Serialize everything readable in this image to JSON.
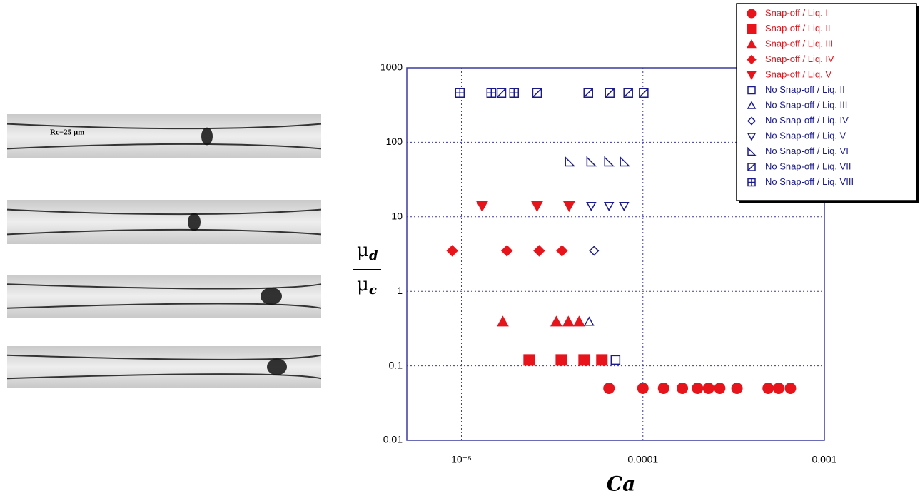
{
  "images": {
    "scale_label": "Rc=25 μm"
  },
  "chart_data": {
    "type": "scatter",
    "x_label": "Ca",
    "y_label": {
      "num_base": "μ",
      "num_sub": "d",
      "den_base": "μ",
      "den_sub": "c"
    },
    "xscale": "log",
    "yscale": "log",
    "xlim": [
      5e-06,
      0.001
    ],
    "ylim": [
      0.01,
      1000
    ],
    "xticks": [
      {
        "value": 1e-05,
        "label": "10⁻⁵"
      },
      0.0001,
      0.001
    ],
    "yticks": [
      0.01,
      0.1,
      1,
      10,
      100,
      1000
    ],
    "grid": true,
    "legend": "upper right",
    "series": [
      {
        "name": "Snap-off / Liq. I",
        "color": "#e8141c",
        "marker": "circle",
        "filled": true,
        "x": [
          6.5e-05,
          0.0001,
          0.00013,
          0.000165,
          0.0002,
          0.00023,
          0.000265,
          0.00033,
          0.00049,
          0.00056,
          0.00065
        ],
        "values": [
          0.05,
          0.05,
          0.05,
          0.05,
          0.05,
          0.05,
          0.05,
          0.05,
          0.05,
          0.05,
          0.05
        ]
      },
      {
        "name": "Snap-off / Liq. II",
        "color": "#e8141c",
        "marker": "square",
        "filled": true,
        "x": [
          2.36e-05,
          3.55e-05,
          4.74e-05,
          5.94e-05
        ],
        "values": [
          0.12,
          0.12,
          0.12,
          0.12
        ]
      },
      {
        "name": "Snap-off / Liq. III",
        "color": "#e8141c",
        "marker": "triangle",
        "filled": true,
        "x": [
          1.69e-05,
          3.33e-05,
          3.88e-05,
          4.45e-05
        ],
        "values": [
          0.39,
          0.39,
          0.39,
          0.39
        ]
      },
      {
        "name": "Snap-off / Liq. IV",
        "color": "#e8141c",
        "marker": "diamond",
        "filled": true,
        "x": [
          8.9e-06,
          1.78e-05,
          2.68e-05,
          3.58e-05
        ],
        "values": [
          3.5,
          3.5,
          3.5,
          3.5
        ]
      },
      {
        "name": "Snap-off / Liq. V",
        "color": "#e8141c",
        "marker": "triangle-down",
        "filled": true,
        "x": [
          1.3e-05,
          2.61e-05,
          3.92e-05
        ],
        "values": [
          14,
          14,
          14
        ]
      },
      {
        "name": "No Snap-off / Liq. II",
        "color": "#1a1a8c",
        "marker": "square",
        "filled": false,
        "x": [
          7.06e-05
        ],
        "values": [
          0.12
        ]
      },
      {
        "name": "No Snap-off / Liq. III",
        "color": "#1a1a8c",
        "marker": "triangle",
        "filled": false,
        "x": [
          5.05e-05
        ],
        "values": [
          0.39
        ]
      },
      {
        "name": "No Snap-off / Liq. IV",
        "color": "#1a1a8c",
        "marker": "diamond",
        "filled": false,
        "x": [
          5.38e-05
        ],
        "values": [
          3.5
        ]
      },
      {
        "name": "No Snap-off / Liq. V",
        "color": "#1a1a8c",
        "marker": "triangle-down",
        "filled": false,
        "x": [
          5.19e-05,
          6.5e-05,
          7.87e-05
        ],
        "values": [
          14,
          14,
          14
        ]
      },
      {
        "name": "No Snap-off / Liq. VI",
        "color": "#1a1a8c",
        "marker": "right-triangle",
        "filled": false,
        "x": [
          3.95e-05,
          5.19e-05,
          6.5e-05,
          7.93e-05
        ],
        "values": [
          55,
          55,
          55,
          55
        ]
      },
      {
        "name": "No Snap-off / Liq. VII",
        "color": "#1a1a8c",
        "marker": "square-slash",
        "filled": false,
        "x": [
          1.66e-05,
          2.61e-05,
          5e-05,
          6.56e-05,
          8.3e-05,
          0.000101
        ],
        "values": [
          460,
          460,
          460,
          460,
          460,
          460
        ]
      },
      {
        "name": "No Snap-off / Liq. VIII",
        "color": "#1a1a8c",
        "marker": "square-plus",
        "filled": false,
        "x": [
          9.8e-06,
          1.46e-05,
          1.95e-05
        ],
        "values": [
          460,
          460,
          460
        ]
      }
    ]
  }
}
